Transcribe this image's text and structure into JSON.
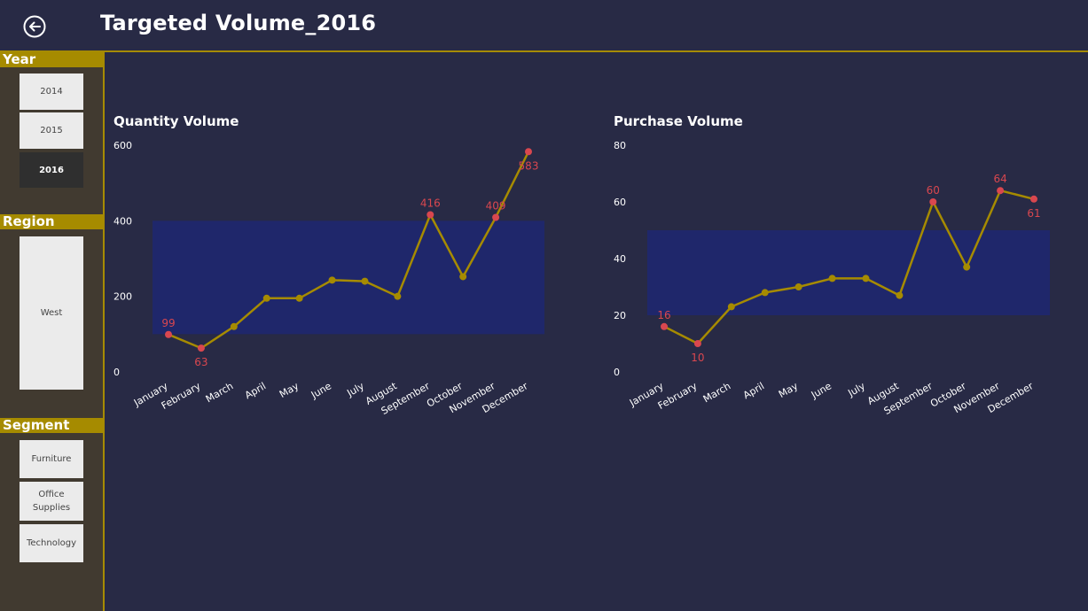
{
  "header": {
    "title": "Targeted Volume_2016"
  },
  "sidebar": {
    "year": {
      "label": "Year",
      "options": [
        "2014",
        "2015",
        "2016"
      ],
      "selected": "2016"
    },
    "region": {
      "label": "Region",
      "options": [
        "West"
      ]
    },
    "segment": {
      "label": "Segment",
      "options": [
        "Furniture",
        "Office Supplies",
        "Technology"
      ]
    }
  },
  "colors": {
    "accent": "#a68b00",
    "line": "#a68b00",
    "band": "#1f276b",
    "highlight": "#d9474f",
    "background": "#282a45"
  },
  "chart_data": [
    {
      "type": "line",
      "title": "Quantity Volume",
      "categories": [
        "January",
        "February",
        "March",
        "April",
        "May",
        "June",
        "July",
        "August",
        "September",
        "October",
        "November",
        "December"
      ],
      "values": [
        99,
        63,
        120,
        195,
        195,
        243,
        240,
        200,
        416,
        252,
        409,
        583
      ],
      "ylim": [
        0,
        600
      ],
      "yticks": [
        "0",
        "200",
        "400",
        "600"
      ],
      "target_band": [
        100,
        400
      ],
      "labels": [
        {
          "index": 0,
          "text": "99"
        },
        {
          "index": 1,
          "text": "63"
        },
        {
          "index": 8,
          "text": "416"
        },
        {
          "index": 10,
          "text": "409"
        },
        {
          "index": 11,
          "text": "583"
        }
      ],
      "grid": false
    },
    {
      "type": "line",
      "title": "Purchase Volume",
      "categories": [
        "January",
        "February",
        "March",
        "April",
        "May",
        "June",
        "July",
        "August",
        "September",
        "October",
        "November",
        "December"
      ],
      "values": [
        16,
        10,
        23,
        28,
        30,
        33,
        33,
        27,
        60,
        37,
        64,
        61
      ],
      "ylim": [
        0,
        80
      ],
      "yticks": [
        "0",
        "20",
        "40",
        "60",
        "80"
      ],
      "target_band": [
        20,
        50
      ],
      "labels": [
        {
          "index": 0,
          "text": "16"
        },
        {
          "index": 1,
          "text": "10"
        },
        {
          "index": 8,
          "text": "60"
        },
        {
          "index": 10,
          "text": "64"
        },
        {
          "index": 11,
          "text": "61"
        }
      ],
      "grid": false
    }
  ]
}
